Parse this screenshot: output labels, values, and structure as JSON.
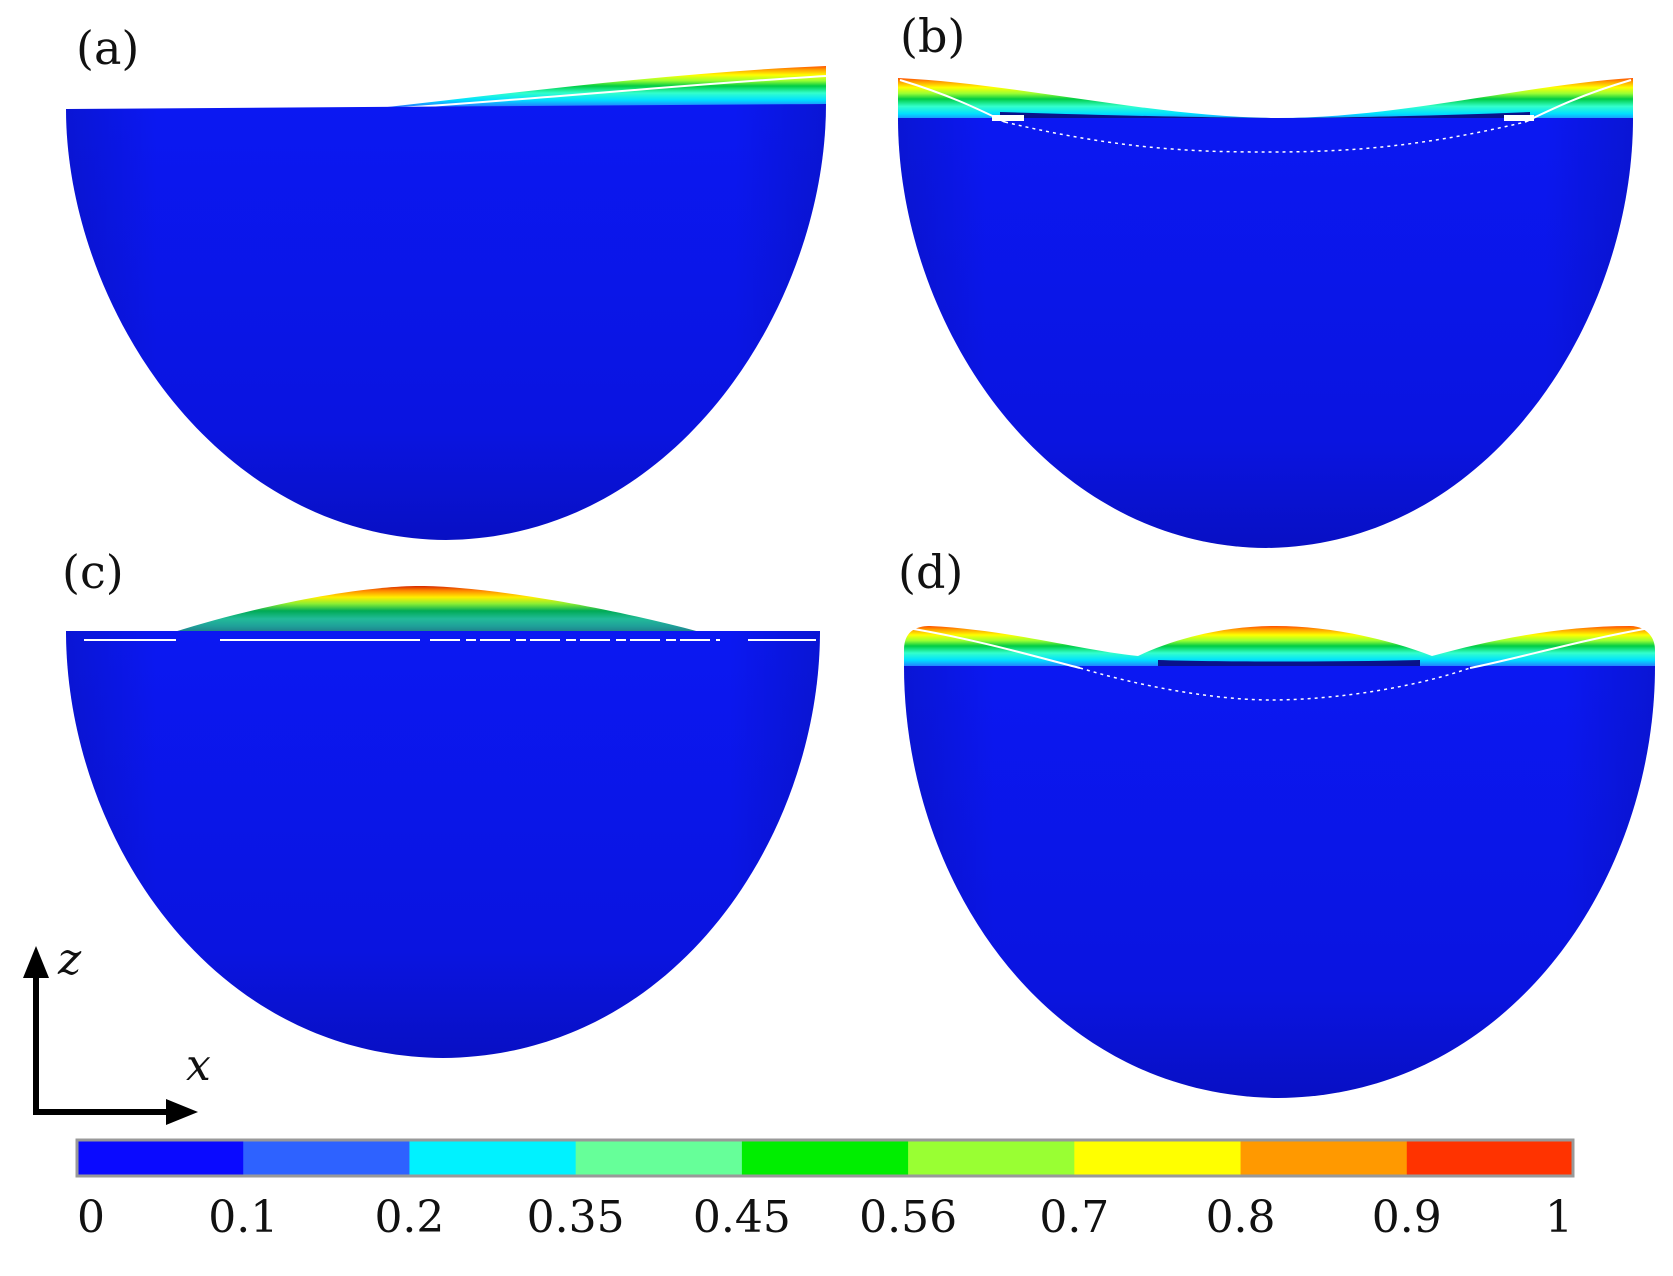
{
  "panels": [
    {
      "id": "a",
      "label": "(a)"
    },
    {
      "id": "b",
      "label": "(b)"
    },
    {
      "id": "c",
      "label": "(c)"
    },
    {
      "id": "d",
      "label": "(d)"
    }
  ],
  "axes": {
    "vertical": "z",
    "horizontal": "x"
  },
  "colorbar": {
    "ticks": [
      "0",
      "0.1",
      "0.2",
      "0.35",
      "0.45",
      "0.56",
      "0.7",
      "0.8",
      "0.9",
      "1"
    ],
    "colors": [
      "#0a0aff",
      "#2e62ff",
      "#00f2ff",
      "#66ff99",
      "#00ee00",
      "#99ff33",
      "#ffff00",
      "#ff9900",
      "#ff3300"
    ]
  },
  "colors": {
    "body": "#0b16ee",
    "body_dark": "#0610b8",
    "highlight": "#ffffff"
  }
}
